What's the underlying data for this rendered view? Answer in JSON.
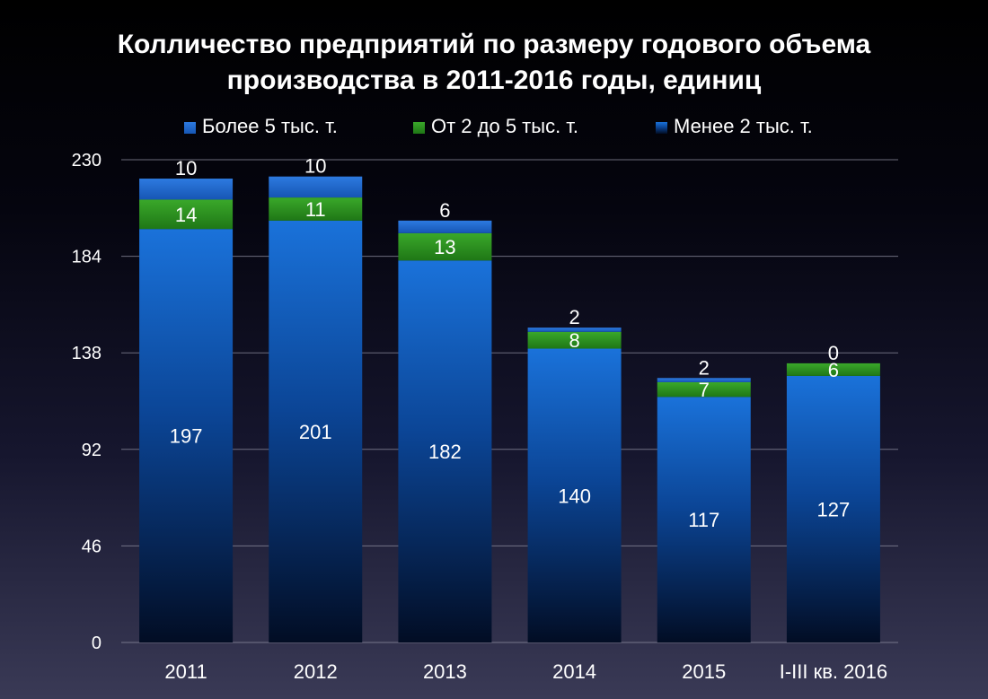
{
  "chart_data": {
    "type": "bar",
    "stacked": true,
    "title_lines": [
      "Колличество предприятий по размеру годового объема",
      "производства в 2011-2016 годы, единиц"
    ],
    "xlabel": "",
    "ylabel": "",
    "categories": [
      "2011",
      "2012",
      "2013",
      "2014",
      "2015",
      "I-III кв. 2016"
    ],
    "yticks": [
      0,
      46,
      92,
      138,
      184,
      230
    ],
    "ylim": [
      0,
      230
    ],
    "grid": true,
    "legend_position": "top",
    "legend_order": [
      2,
      1,
      0
    ],
    "series": [
      {
        "name": "Менее 2 тыс. т.",
        "values": [
          197,
          201,
          182,
          140,
          117,
          127
        ],
        "color": "#1a6fd4"
      },
      {
        "name": "От 2 до 5 тыс. т.",
        "values": [
          14,
          11,
          13,
          8,
          7,
          6
        ],
        "color": "#2f9a22"
      },
      {
        "name": "Более 5 тыс. т.",
        "values": [
          10,
          10,
          6,
          2,
          2,
          0
        ],
        "color": "#1e66cc"
      }
    ]
  }
}
